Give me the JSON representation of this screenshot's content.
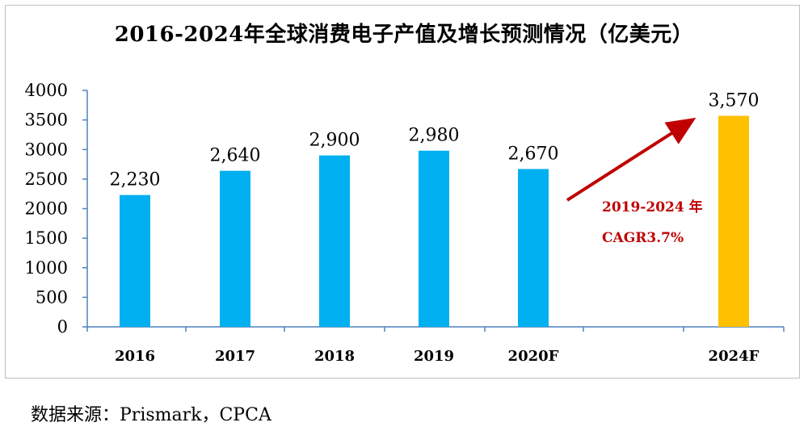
{
  "chart_data": {
    "type": "bar",
    "title": "2016-2024年全球消费电子产值及增长预测情况（亿美元）",
    "categories": [
      "2016",
      "2017",
      "2018",
      "2019",
      "2020F",
      "2024F"
    ],
    "values": [
      2230,
      2640,
      2900,
      2980,
      2670,
      3570
    ],
    "value_labels": [
      "2,230",
      "2,640",
      "2,900",
      "2,980",
      "2,670",
      "3,570"
    ],
    "ylim": [
      0,
      4000
    ],
    "yticks": [
      0,
      500,
      1000,
      1500,
      2000,
      2500,
      3000,
      3500,
      4000
    ],
    "xlabel": "",
    "ylabel": "",
    "colors": {
      "actual": "#00b0f0",
      "forecast": "#ffc000",
      "arrow": "#c00000"
    },
    "annotation": {
      "line1": "2019-2024 年",
      "line2": "CAGR3.7%"
    }
  },
  "source": "数据来源：Prismark，CPCA"
}
